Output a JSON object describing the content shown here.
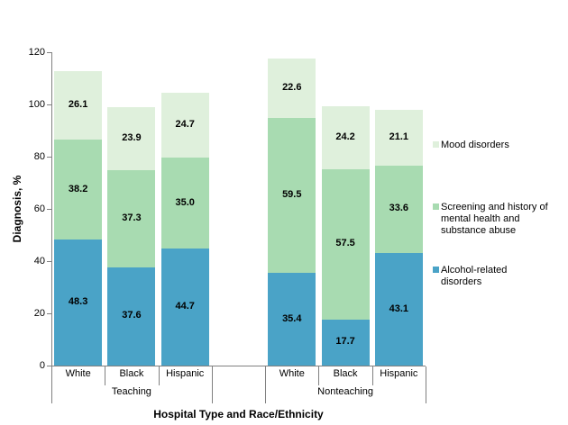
{
  "chart_data": {
    "type": "bar",
    "stacked": true,
    "xlabel": "Hospital Type and Race/Ethnicity",
    "ylabel": "Diagnosis, %",
    "ylim": [
      0,
      120
    ],
    "yticks": [
      0,
      20,
      40,
      60,
      80,
      100,
      120
    ],
    "grid": false,
    "axis_color": "#808080",
    "value_labels": true,
    "value_decimals": 1,
    "groups": [
      {
        "label": "Teaching",
        "categories": [
          "White",
          "Black",
          "Hispanic"
        ]
      },
      {
        "label": "Nonteaching",
        "categories": [
          "White",
          "Black",
          "Hispanic"
        ]
      }
    ],
    "series": [
      {
        "name": "Alcohol-related disorders",
        "color": "#4AA3C7",
        "values": [
          [
            48.3,
            37.6,
            44.7
          ],
          [
            35.4,
            17.7,
            43.1
          ]
        ]
      },
      {
        "name": "Screening and history of mental health and substance abuse",
        "color": "#A8DBB1",
        "values": [
          [
            38.2,
            37.3,
            35.0
          ],
          [
            59.5,
            57.5,
            33.6
          ]
        ]
      },
      {
        "name": "Mood disorders",
        "color": "#DFF0DC",
        "values": [
          [
            26.1,
            23.9,
            24.7
          ],
          [
            22.6,
            24.2,
            21.1
          ]
        ]
      }
    ],
    "legend_position": "right",
    "legend": [
      {
        "lines": [
          "Mood disorders"
        ],
        "color": "#DFF0DC"
      },
      {
        "lines": [
          "Screening and history of",
          "mental health and",
          "substance abuse"
        ],
        "color": "#A8DBB1"
      },
      {
        "lines": [
          "Alcohol-related",
          "disorders"
        ],
        "color": "#4AA3C7"
      }
    ]
  }
}
